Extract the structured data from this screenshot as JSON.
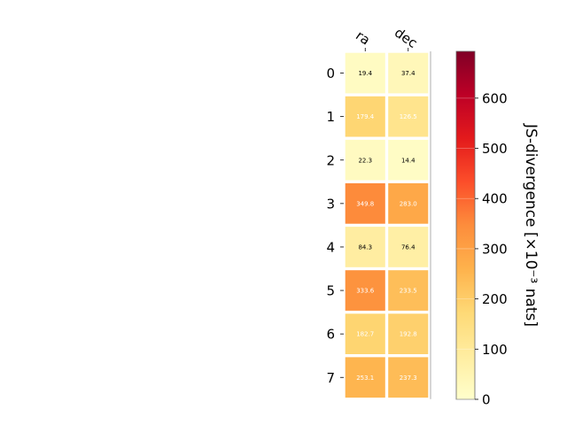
{
  "chart_data": {
    "type": "heatmap",
    "title": "",
    "columns": [
      "ra",
      "dec"
    ],
    "rows": [
      "0",
      "1",
      "2",
      "3",
      "4",
      "5",
      "6",
      "7"
    ],
    "values": [
      [
        19.4,
        37.4
      ],
      [
        179.4,
        126.5
      ],
      [
        22.3,
        14.4
      ],
      [
        349.8,
        283.0
      ],
      [
        84.3,
        76.4
      ],
      [
        333.6,
        233.5
      ],
      [
        182.7,
        192.8
      ],
      [
        253.1,
        237.3
      ]
    ],
    "cell_labels": [
      [
        "19.4",
        "37.4"
      ],
      [
        "179.4",
        "126.5"
      ],
      [
        "22.3",
        "14.4"
      ],
      [
        "349.8",
        "283.0"
      ],
      [
        "84.3",
        "76.4"
      ],
      [
        "333.6",
        "233.5"
      ],
      [
        "182.7",
        "192.8"
      ],
      [
        "253.1",
        "237.3"
      ]
    ],
    "colorbar": {
      "label": "JS-divergence [×10⁻³ nats]",
      "ticks": [
        0,
        100,
        200,
        300,
        400,
        500,
        600
      ],
      "tick_labels": [
        "0",
        "100",
        "200",
        "300",
        "400",
        "500",
        "600"
      ],
      "range": [
        0,
        693.2
      ],
      "colormap": "YlOrRd"
    },
    "colors": {
      "cell_border": "#ffffff",
      "text_dark": "#000000",
      "text_light": "#ffffff"
    }
  }
}
